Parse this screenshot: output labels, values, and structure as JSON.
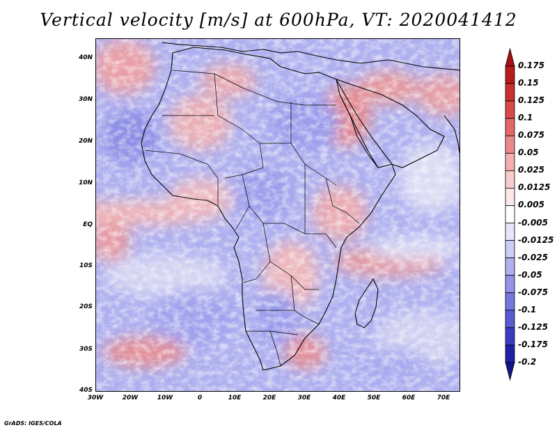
{
  "title": "Vertical velocity [m/s] at 600hPa, VT: 2020041412",
  "footer": "GrADS: IGES/COLA",
  "map": {
    "lat_labels": [
      "40N",
      "30N",
      "20N",
      "10N",
      "EQ",
      "10S",
      "20S",
      "30S",
      "40S"
    ],
    "lon_labels": [
      "30W",
      "20W",
      "10W",
      "0",
      "10E",
      "20E",
      "30E",
      "40E",
      "50E",
      "60E",
      "70E"
    ],
    "lat_range": [
      -40,
      45
    ],
    "lon_range": [
      -30,
      75
    ]
  },
  "colorbar": {
    "labels": [
      "0.175",
      "0.15",
      "0.125",
      "0.1",
      "0.075",
      "0.05",
      "0.025",
      "0.0125",
      "0.005",
      "-0.005",
      "-0.0125",
      "-0.025",
      "-0.05",
      "-0.075",
      "-0.1",
      "-0.125",
      "-0.175",
      "-0.2"
    ],
    "colors": [
      "#a50f15",
      "#b81c1c",
      "#cb3030",
      "#d94a4a",
      "#e46868",
      "#ec8a8a",
      "#f3aeae",
      "#f8cccc",
      "#fce8e8",
      "#ffffff",
      "#e6e6fb",
      "#cdcdf6",
      "#b0b0f0",
      "#9494ea",
      "#7777e0",
      "#5b5bd4",
      "#3c3cc0",
      "#2020a8",
      "#15158a"
    ]
  },
  "chart_data": {
    "type": "heatmap",
    "title": "Vertical velocity [m/s] at 600hPa, VT: 2020041412",
    "variable": "Vertical velocity",
    "units": "m/s",
    "level": "600hPa",
    "valid_time": "2020041412",
    "x_ticks": [
      "30W",
      "20W",
      "10W",
      "0",
      "10E",
      "20E",
      "30E",
      "40E",
      "50E",
      "60E",
      "70E"
    ],
    "y_ticks": [
      "40N",
      "30N",
      "20N",
      "10N",
      "EQ",
      "10S",
      "20S",
      "30S",
      "40S"
    ],
    "lon_range": [
      -30,
      75
    ],
    "lat_range": [
      -40,
      45
    ],
    "contour_levels": [
      -0.2,
      -0.175,
      -0.125,
      -0.1,
      -0.075,
      -0.05,
      -0.025,
      -0.0125,
      -0.005,
      0.005,
      0.0125,
      0.025,
      0.05,
      0.075,
      0.1,
      0.125,
      0.15,
      0.175
    ]
  }
}
